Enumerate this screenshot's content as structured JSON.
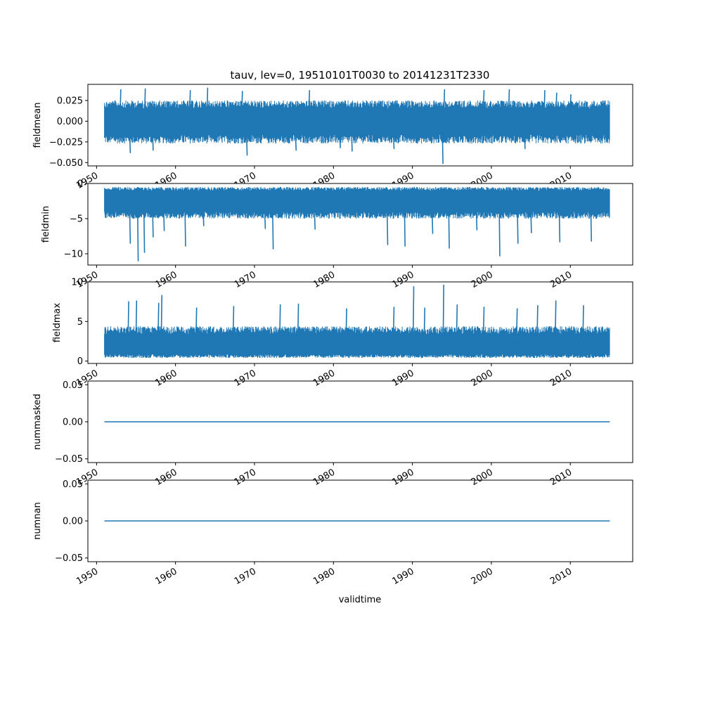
{
  "chart_data": {
    "type": "line",
    "title": "tauv, lev=0, 19510101T0030 to 20141231T2330",
    "xlabel": "validtime",
    "x_range": [
      "1951-01-01",
      "2014-12-31"
    ],
    "xlim_years": [
      1948.9,
      2017.9
    ],
    "x_ticks": [
      "1950",
      "1960",
      "1970",
      "1980",
      "1990",
      "2000",
      "2010"
    ],
    "color": "#1f77b4",
    "grid": false,
    "panels": [
      {
        "ylabel": "fieldmean",
        "ylim": [
          -0.054,
          0.0445
        ],
        "y_ticks": [
          0.025,
          0.0,
          -0.025,
          -0.05
        ],
        "y_tick_labels": [
          "0.025",
          "0.000",
          "−0.025",
          "−0.050"
        ],
        "band": {
          "low": -0.027,
          "high": 0.025,
          "noise_low": -0.015,
          "noise_high": 0.014
        },
        "extremes": [
          {
            "x": 1953.0,
            "y": 0.038
          },
          {
            "x": 1956.1,
            "y": 0.039
          },
          {
            "x": 1961.8,
            "y": 0.037
          },
          {
            "x": 1964.0,
            "y": 0.04
          },
          {
            "x": 1968.4,
            "y": 0.036
          },
          {
            "x": 1976.9,
            "y": 0.037
          },
          {
            "x": 1994.0,
            "y": 0.038
          },
          {
            "x": 1999.0,
            "y": 0.037
          },
          {
            "x": 2002.2,
            "y": 0.038
          },
          {
            "x": 2006.7,
            "y": 0.037
          },
          {
            "x": 2008.2,
            "y": 0.034
          },
          {
            "x": 2010.0,
            "y": 0.032
          },
          {
            "x": 1954.2,
            "y": -0.038
          },
          {
            "x": 1957.1,
            "y": -0.035
          },
          {
            "x": 1969.0,
            "y": -0.041
          },
          {
            "x": 1975.2,
            "y": -0.035
          },
          {
            "x": 1980.8,
            "y": -0.032
          },
          {
            "x": 1982.3,
            "y": -0.036
          },
          {
            "x": 1987.6,
            "y": -0.033
          },
          {
            "x": 1993.8,
            "y": -0.051
          },
          {
            "x": 2004.2,
            "y": -0.033
          }
        ]
      },
      {
        "ylabel": "fieldmin",
        "ylim": [
          -11.6,
          0.0
        ],
        "y_ticks": [
          0,
          -5,
          -10
        ],
        "y_tick_labels": [
          "0",
          "−5",
          "−10"
        ],
        "band": {
          "low": -5.0,
          "high": -0.5,
          "noise_low": -3.9,
          "noise_high": -1.1
        },
        "extremes": [
          {
            "x": 1955.2,
            "y": -11.0
          },
          {
            "x": 1954.2,
            "y": -8.5
          },
          {
            "x": 1956.0,
            "y": -9.8
          },
          {
            "x": 1957.1,
            "y": -7.6
          },
          {
            "x": 1958.5,
            "y": -6.7
          },
          {
            "x": 1961.2,
            "y": -8.9
          },
          {
            "x": 1963.5,
            "y": -6.0
          },
          {
            "x": 1971.3,
            "y": -6.4
          },
          {
            "x": 1972.3,
            "y": -9.3
          },
          {
            "x": 1977.6,
            "y": -6.5
          },
          {
            "x": 1986.8,
            "y": -8.7
          },
          {
            "x": 1989.0,
            "y": -8.9
          },
          {
            "x": 1992.5,
            "y": -7.1
          },
          {
            "x": 1994.6,
            "y": -9.2
          },
          {
            "x": 1998.1,
            "y": -6.6
          },
          {
            "x": 2001.0,
            "y": -10.3
          },
          {
            "x": 2003.3,
            "y": -8.5
          },
          {
            "x": 2005.0,
            "y": -7.0
          },
          {
            "x": 2008.6,
            "y": -8.3
          },
          {
            "x": 2012.6,
            "y": -8.2
          }
        ]
      },
      {
        "ylabel": "fieldmax",
        "ylim": [
          -0.3,
          10.0
        ],
        "y_ticks": [
          0,
          5,
          10
        ],
        "y_tick_labels": [
          "0",
          "5",
          "10"
        ],
        "band": {
          "low": 0.4,
          "high": 4.4,
          "noise_low": 0.9,
          "noise_high": 3.3
        },
        "extremes": [
          {
            "x": 1954.0,
            "y": 7.5
          },
          {
            "x": 1955.0,
            "y": 7.6
          },
          {
            "x": 1957.8,
            "y": 7.3
          },
          {
            "x": 1958.2,
            "y": 8.3
          },
          {
            "x": 1962.6,
            "y": 6.7
          },
          {
            "x": 1967.3,
            "y": 6.9
          },
          {
            "x": 1973.2,
            "y": 7.1
          },
          {
            "x": 1975.5,
            "y": 7.2
          },
          {
            "x": 1981.6,
            "y": 6.6
          },
          {
            "x": 1987.6,
            "y": 6.8
          },
          {
            "x": 1990.1,
            "y": 9.4
          },
          {
            "x": 1991.5,
            "y": 6.7
          },
          {
            "x": 1993.9,
            "y": 9.6
          },
          {
            "x": 1995.6,
            "y": 7.1
          },
          {
            "x": 1999.0,
            "y": 6.8
          },
          {
            "x": 2003.2,
            "y": 6.6
          },
          {
            "x": 2005.8,
            "y": 7.0
          },
          {
            "x": 2008.1,
            "y": 7.6
          },
          {
            "x": 2011.6,
            "y": 7.0
          }
        ]
      },
      {
        "ylabel": "nummasked",
        "ylim": [
          -0.055,
          0.055
        ],
        "y_ticks": [
          0.05,
          0.0,
          -0.05
        ],
        "y_tick_labels": [
          "0.05",
          "0.00",
          "−0.05"
        ],
        "constant": 0.0
      },
      {
        "ylabel": "numnan",
        "ylim": [
          -0.055,
          0.055
        ],
        "y_ticks": [
          0.05,
          0.0,
          -0.05
        ],
        "y_tick_labels": [
          "0.05",
          "0.00",
          "−0.05"
        ],
        "constant": 0.0
      }
    ]
  }
}
